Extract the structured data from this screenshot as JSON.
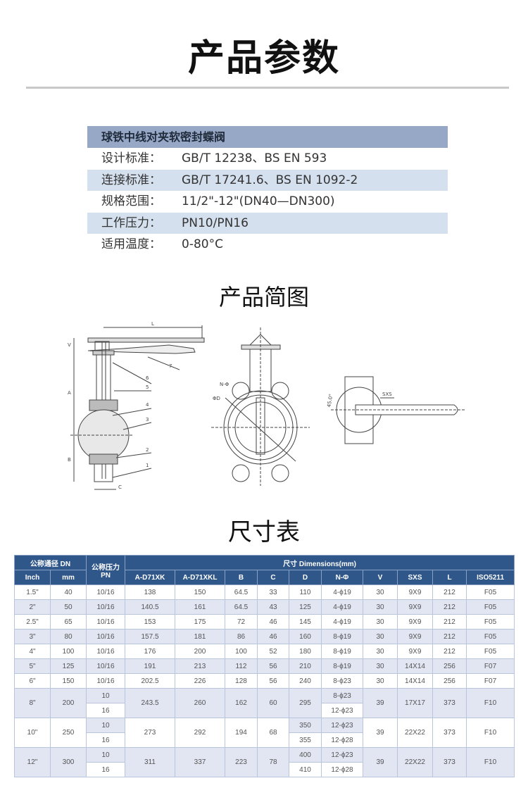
{
  "title": "产品参数",
  "params": {
    "header": "球铁中线对夹软密封蝶阀",
    "rows": [
      {
        "label": "设计标准：",
        "value": "GB/T 12238、BS EN 593"
      },
      {
        "label": "连接标准：",
        "value": "GB/T 17241.6、BS EN 1092-2"
      },
      {
        "label": "规格范围：",
        "value": "11/2\"-12\"(DN40—DN300)"
      },
      {
        "label": "工作压力：",
        "value": "PN10/PN16"
      },
      {
        "label": "适用温度：",
        "value": "0-80°C"
      }
    ]
  },
  "drawing_title": "产品简图",
  "drawing_labels": {
    "side": {
      "L": "L",
      "V": "V",
      "A": "A",
      "B": "B",
      "C": "C",
      "parts": [
        "1",
        "2",
        "3",
        "4",
        "5",
        "6",
        "7"
      ]
    },
    "front": {
      "n_phi": "N-Φ",
      "phi_d": "ΦD"
    },
    "top": {
      "sxs": "SXS",
      "angle": "45.0°"
    }
  },
  "table_title": "尺寸表",
  "table": {
    "group_dn": "公称通径 DN",
    "group_pn": "公称压力 PN",
    "group_dim": "尺寸 Dimensions(mm)",
    "columns": [
      "Inch",
      "mm",
      "A-D71XK",
      "A-D71XKL",
      "B",
      "C",
      "D",
      "N-Φ",
      "V",
      "SXS",
      "L",
      "ISO5211"
    ],
    "rows": [
      {
        "inch": "1.5\"",
        "mm": "40",
        "pn": [
          "10/16"
        ],
        "a": "138",
        "akl": "150",
        "b": "64.5",
        "c": "33",
        "d": [
          "110"
        ],
        "n": [
          "4-ϕ19"
        ],
        "v": "30",
        "sxs": "9X9",
        "l": "212",
        "iso": "F05"
      },
      {
        "inch": "2\"",
        "mm": "50",
        "pn": [
          "10/16"
        ],
        "a": "140.5",
        "akl": "161",
        "b": "64.5",
        "c": "43",
        "d": [
          "125"
        ],
        "n": [
          "4-ϕ19"
        ],
        "v": "30",
        "sxs": "9X9",
        "l": "212",
        "iso": "F05"
      },
      {
        "inch": "2.5\"",
        "mm": "65",
        "pn": [
          "10/16"
        ],
        "a": "153",
        "akl": "175",
        "b": "72",
        "c": "46",
        "d": [
          "145"
        ],
        "n": [
          "4-ϕ19"
        ],
        "v": "30",
        "sxs": "9X9",
        "l": "212",
        "iso": "F05"
      },
      {
        "inch": "3\"",
        "mm": "80",
        "pn": [
          "10/16"
        ],
        "a": "157.5",
        "akl": "181",
        "b": "86",
        "c": "46",
        "d": [
          "160"
        ],
        "n": [
          "8-ϕ19"
        ],
        "v": "30",
        "sxs": "9X9",
        "l": "212",
        "iso": "F05"
      },
      {
        "inch": "4\"",
        "mm": "100",
        "pn": [
          "10/16"
        ],
        "a": "176",
        "akl": "200",
        "b": "100",
        "c": "52",
        "d": [
          "180"
        ],
        "n": [
          "8-ϕ19"
        ],
        "v": "30",
        "sxs": "9X9",
        "l": "212",
        "iso": "F05"
      },
      {
        "inch": "5\"",
        "mm": "125",
        "pn": [
          "10/16"
        ],
        "a": "191",
        "akl": "213",
        "b": "112",
        "c": "56",
        "d": [
          "210"
        ],
        "n": [
          "8-ϕ19"
        ],
        "v": "30",
        "sxs": "14X14",
        "l": "256",
        "iso": "F07"
      },
      {
        "inch": "6\"",
        "mm": "150",
        "pn": [
          "10/16"
        ],
        "a": "202.5",
        "akl": "226",
        "b": "128",
        "c": "56",
        "d": [
          "240"
        ],
        "n": [
          "8-ϕ23"
        ],
        "v": "30",
        "sxs": "14X14",
        "l": "256",
        "iso": "F07"
      },
      {
        "inch": "8\"",
        "mm": "200",
        "pn": [
          "10",
          "16"
        ],
        "a": "243.5",
        "akl": "260",
        "b": "162",
        "c": "60",
        "d": [
          "295"
        ],
        "n": [
          "8-ϕ23",
          "12-ϕ23"
        ],
        "v": "39",
        "sxs": "17X17",
        "l": "373",
        "iso": "F10"
      },
      {
        "inch": "10\"",
        "mm": "250",
        "pn": [
          "10",
          "16"
        ],
        "a": "273",
        "akl": "292",
        "b": "194",
        "c": "68",
        "d": [
          "350",
          "355"
        ],
        "n": [
          "12-ϕ23",
          "12-ϕ28"
        ],
        "v": "39",
        "sxs": "22X22",
        "l": "373",
        "iso": "F10"
      },
      {
        "inch": "12\"",
        "mm": "300",
        "pn": [
          "10",
          "16"
        ],
        "a": "311",
        "akl": "337",
        "b": "223",
        "c": "78",
        "d": [
          "400",
          "410"
        ],
        "n": [
          "12-ϕ23",
          "12-ϕ28"
        ],
        "v": "39",
        "sxs": "22X22",
        "l": "373",
        "iso": "F10"
      }
    ]
  },
  "colors": {
    "header_blue": "#30578a",
    "param_header": "#97a8c7",
    "param_stripe": "#d5e0ef",
    "table_stripe": "#e2e5f2"
  }
}
